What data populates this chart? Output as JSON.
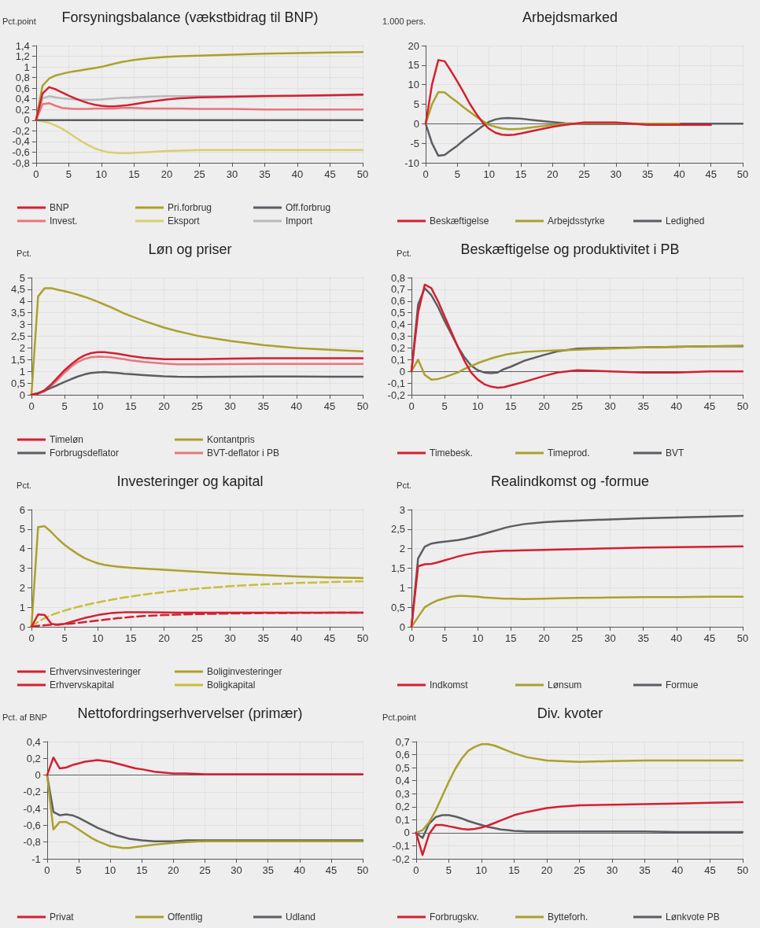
{
  "chart_data": [
    {
      "type": "line",
      "title": "Forsyningsbalance (vækstbidrag til BNP)",
      "ylabel": "Pct.point",
      "marker": "none",
      "grid": true,
      "legend": "bottom",
      "x": [
        0,
        1,
        2,
        3,
        4,
        5,
        6,
        7,
        8,
        9,
        10,
        11,
        12,
        13,
        14,
        15,
        17,
        20,
        22,
        25,
        30,
        35,
        40,
        45,
        50
      ],
      "xlim": [
        0,
        50
      ],
      "xticks": [
        0,
        5,
        10,
        15,
        20,
        25,
        30,
        35,
        40,
        45,
        50
      ],
      "ylim": [
        -0.8,
        1.4
      ],
      "yticks": [
        {
          "value": -0.8,
          "label": "-0,8"
        },
        {
          "value": -0.6,
          "label": "-0,6"
        },
        {
          "value": -0.4,
          "label": "-0,4"
        },
        {
          "value": -0.2,
          "label": "-0,2"
        },
        0,
        {
          "value": 0.2,
          "label": "0,2"
        },
        {
          "value": 0.4,
          "label": "0,4"
        },
        {
          "value": 0.6,
          "label": "0,6"
        },
        {
          "value": 0.8,
          "label": "0,8"
        },
        1,
        {
          "value": 1.2,
          "label": "1,2"
        },
        {
          "value": 1.4,
          "label": "1,4"
        }
      ],
      "series": [
        {
          "name": "BNP",
          "color": "#d42031",
          "values": [
            0,
            0.5,
            0.62,
            0.58,
            0.52,
            0.46,
            0.41,
            0.36,
            0.32,
            0.29,
            0.27,
            0.26,
            0.26,
            0.27,
            0.28,
            0.3,
            0.34,
            0.39,
            0.41,
            0.43,
            0.44,
            0.45,
            0.46,
            0.47,
            0.48
          ]
        },
        {
          "name": "Pri.forbrug",
          "color": "#aba12c",
          "values": [
            0,
            0.65,
            0.78,
            0.84,
            0.87,
            0.9,
            0.92,
            0.94,
            0.96,
            0.98,
            1.0,
            1.03,
            1.06,
            1.09,
            1.11,
            1.13,
            1.16,
            1.19,
            1.2,
            1.21,
            1.23,
            1.25,
            1.26,
            1.27,
            1.28
          ]
        },
        {
          "name": "Off.forbrug",
          "color": "#5c5d63",
          "values": [
            0,
            0,
            0,
            0,
            0,
            0,
            0,
            0,
            0,
            0,
            0,
            0,
            0,
            0,
            0,
            0,
            0,
            0,
            0,
            0,
            0,
            0,
            0,
            0,
            0
          ]
        },
        {
          "name": "Invest.",
          "color": "#e8767e",
          "values": [
            0,
            0.3,
            0.32,
            0.27,
            0.23,
            0.22,
            0.21,
            0.21,
            0.21,
            0.22,
            0.22,
            0.22,
            0.22,
            0.23,
            0.23,
            0.23,
            0.22,
            0.22,
            0.22,
            0.21,
            0.21,
            0.2,
            0.2,
            0.2,
            0.2
          ]
        },
        {
          "name": "Eksport",
          "color": "#d8cf6e",
          "values": [
            0,
            -0.02,
            -0.05,
            -0.1,
            -0.16,
            -0.24,
            -0.32,
            -0.4,
            -0.47,
            -0.53,
            -0.57,
            -0.6,
            -0.61,
            -0.62,
            -0.62,
            -0.61,
            -0.6,
            -0.58,
            -0.57,
            -0.56,
            -0.56,
            -0.56,
            -0.56,
            -0.56,
            -0.56
          ]
        },
        {
          "name": "Import",
          "color": "#b9b9bb",
          "values": [
            0,
            0.41,
            0.45,
            0.43,
            0.41,
            0.4,
            0.39,
            0.38,
            0.38,
            0.38,
            0.39,
            0.4,
            0.41,
            0.42,
            0.42,
            0.43,
            0.44,
            0.45,
            0.45,
            0.45,
            0.45,
            0.46,
            0.46,
            0.46,
            0.47
          ]
        }
      ]
    },
    {
      "type": "line",
      "title": "Arbejdsmarked",
      "ylabel": "1.000 pers.",
      "marker": "none",
      "grid": true,
      "legend": "bottom",
      "x": [
        0,
        1,
        2,
        3,
        4,
        5,
        6,
        7,
        8,
        9,
        10,
        11,
        12,
        13,
        14,
        15,
        17,
        20,
        22,
        25,
        30,
        35,
        40,
        45,
        50
      ],
      "xlim": [
        0,
        50
      ],
      "xticks": [
        0,
        5,
        10,
        15,
        20,
        25,
        30,
        35,
        40,
        45,
        50
      ],
      "ylim": [
        -10,
        20
      ],
      "yticks": [
        -10,
        -5,
        0,
        5,
        10,
        15,
        20
      ],
      "ref_lines": [
        {
          "axis": "y",
          "value": 0,
          "color": "#5c5d63"
        }
      ],
      "series": [
        {
          "name": "Beskæftigelse",
          "color": "#d42031",
          "values": [
            0,
            10,
            16.3,
            16,
            13.5,
            10.8,
            8,
            5,
            2.5,
            0.3,
            -1.3,
            -2.3,
            -2.8,
            -2.9,
            -2.8,
            -2.5,
            -1.8,
            -0.8,
            -0.3,
            0.3,
            0.3,
            -0.3,
            -0.3,
            -0.3,
            null
          ]
        },
        {
          "name": "Arbejdsstyrke",
          "color": "#aba12c",
          "values": [
            0,
            5,
            8.1,
            8,
            6.7,
            5.5,
            4.2,
            3,
            1.8,
            0.7,
            -0.3,
            -0.8,
            -1.2,
            -1.4,
            -1.4,
            -1.3,
            -0.9,
            -0.3,
            0,
            0.1,
            0.1,
            0,
            0,
            null,
            null
          ]
        },
        {
          "name": "Ledighed",
          "color": "#5c5d63",
          "values": [
            0,
            -5,
            -8.2,
            -8,
            -6.8,
            -5.6,
            -4.2,
            -3,
            -1.8,
            -0.6,
            0.5,
            1.1,
            1.4,
            1.5,
            1.4,
            1.3,
            0.9,
            0.4,
            0.1,
            -0.1,
            -0.1,
            0,
            0,
            0,
            0
          ]
        }
      ]
    },
    {
      "type": "line",
      "title": "Løn og priser",
      "ylabel": "Pct.",
      "marker": "none",
      "grid": true,
      "legend": "bottom",
      "x": [
        0,
        1,
        2,
        3,
        4,
        5,
        6,
        7,
        8,
        9,
        10,
        11,
        12,
        13,
        14,
        15,
        17,
        20,
        22,
        25,
        30,
        35,
        40,
        45,
        50
      ],
      "xlim": [
        0,
        50
      ],
      "xticks": [
        0,
        5,
        10,
        15,
        20,
        25,
        30,
        35,
        40,
        45,
        50
      ],
      "ylim": [
        0,
        5
      ],
      "yticks": [
        0,
        {
          "value": 0.5,
          "label": "0,5"
        },
        1,
        {
          "value": 1.5,
          "label": "1,5"
        },
        2,
        {
          "value": 2.5,
          "label": "2,5"
        },
        3,
        {
          "value": 3.5,
          "label": "3,5"
        },
        4,
        {
          "value": 4.5,
          "label": "4,5"
        },
        5
      ],
      "series": [
        {
          "name": "Timeløn",
          "color": "#d42031",
          "values": [
            0,
            0.05,
            0.2,
            0.45,
            0.75,
            1.05,
            1.3,
            1.52,
            1.68,
            1.78,
            1.82,
            1.82,
            1.79,
            1.75,
            1.7,
            1.65,
            1.58,
            1.52,
            1.52,
            1.52,
            1.54,
            1.56,
            1.56,
            1.56,
            1.56
          ]
        },
        {
          "name": "Kontantpris",
          "color": "#aba12c",
          "values": [
            0,
            4.2,
            4.55,
            4.55,
            4.48,
            4.42,
            4.35,
            4.27,
            4.18,
            4.08,
            3.97,
            3.85,
            3.74,
            3.6,
            3.47,
            3.36,
            3.15,
            2.87,
            2.72,
            2.52,
            2.3,
            2.12,
            2.0,
            1.92,
            1.85
          ]
        },
        {
          "name": "Forbrugsdeflator",
          "color": "#5c5d63",
          "values": [
            0,
            0.08,
            0.18,
            0.3,
            0.42,
            0.55,
            0.67,
            0.78,
            0.87,
            0.93,
            0.96,
            0.97,
            0.95,
            0.93,
            0.9,
            0.88,
            0.84,
            0.79,
            0.77,
            0.76,
            0.77,
            0.78,
            0.78,
            0.77,
            0.77
          ]
        },
        {
          "name": "BVT-deflator i PB",
          "color": "#e8767e",
          "values": [
            0,
            0.05,
            0.15,
            0.38,
            0.65,
            0.95,
            1.2,
            1.4,
            1.53,
            1.6,
            1.63,
            1.62,
            1.6,
            1.56,
            1.52,
            1.47,
            1.4,
            1.33,
            1.3,
            1.3,
            1.31,
            1.32,
            1.32,
            1.32,
            1.32
          ]
        }
      ]
    },
    {
      "type": "line",
      "title": "Beskæftigelse og produktivitet i PB",
      "ylabel": "Pct.",
      "marker": "none",
      "grid": true,
      "legend": "bottom",
      "x": [
        0,
        1,
        2,
        3,
        4,
        5,
        6,
        7,
        8,
        9,
        10,
        11,
        12,
        13,
        14,
        15,
        17,
        20,
        22,
        25,
        30,
        35,
        40,
        45,
        50
      ],
      "xlim": [
        0,
        50
      ],
      "xticks": [
        0,
        5,
        10,
        15,
        20,
        25,
        30,
        35,
        40,
        45,
        50
      ],
      "ylim": [
        -0.2,
        0.8
      ],
      "yticks": [
        {
          "value": -0.2,
          "label": "-0,2"
        },
        {
          "value": -0.1,
          "label": "-0,1"
        },
        0,
        {
          "value": 0.1,
          "label": "0,1"
        },
        {
          "value": 0.2,
          "label": "0,2"
        },
        {
          "value": 0.3,
          "label": "0,3"
        },
        {
          "value": 0.4,
          "label": "0,4"
        },
        {
          "value": 0.5,
          "label": "0,5"
        },
        {
          "value": 0.6,
          "label": "0,6"
        },
        {
          "value": 0.7,
          "label": "0,7"
        },
        {
          "value": 0.8,
          "label": "0,8"
        }
      ],
      "ref_lines": [
        {
          "axis": "y",
          "value": 0,
          "color": "#5c5d63"
        }
      ],
      "series": [
        {
          "name": "Timebesk.",
          "color": "#d42031",
          "values": [
            0,
            0.5,
            0.74,
            0.71,
            0.6,
            0.47,
            0.34,
            0.21,
            0.09,
            -0.01,
            -0.07,
            -0.11,
            -0.13,
            -0.14,
            -0.135,
            -0.12,
            -0.09,
            -0.04,
            -0.01,
            0.01,
            0,
            -0.01,
            -0.01,
            0,
            0
          ]
        },
        {
          "name": "Timeprod.",
          "color": "#aba12c",
          "values": [
            0,
            0.1,
            -0.03,
            -0.07,
            -0.065,
            -0.05,
            -0.03,
            -0.01,
            0.02,
            0.045,
            0.07,
            0.09,
            0.11,
            0.125,
            0.14,
            0.15,
            0.165,
            0.175,
            0.18,
            0.185,
            0.195,
            0.205,
            0.21,
            0.215,
            0.22
          ]
        },
        {
          "name": "BVT",
          "color": "#5c5d63",
          "values": [
            0,
            0.57,
            0.71,
            0.65,
            0.55,
            0.43,
            0.32,
            0.21,
            0.12,
            0.05,
            0.01,
            -0.01,
            -0.015,
            -0.01,
            0.02,
            0.04,
            0.09,
            0.14,
            0.17,
            0.195,
            0.2,
            0.205,
            0.21,
            0.215,
            0.215
          ]
        }
      ]
    },
    {
      "type": "line",
      "title": "Investeringer og kapital",
      "ylabel": "Pct.",
      "marker": "none",
      "grid": true,
      "legend": "bottom",
      "x": [
        0,
        1,
        2,
        3,
        4,
        5,
        6,
        7,
        8,
        9,
        10,
        11,
        12,
        13,
        14,
        15,
        17,
        20,
        22,
        25,
        30,
        35,
        40,
        45,
        50
      ],
      "xlim": [
        0,
        50
      ],
      "xticks": [
        0,
        5,
        10,
        15,
        20,
        25,
        30,
        35,
        40,
        45,
        50
      ],
      "ylim": [
        0,
        6
      ],
      "yticks": [
        0,
        1,
        2,
        3,
        4,
        5,
        6
      ],
      "series": [
        {
          "name": "Erhvervsinvesteringer",
          "color": "#d42031",
          "values": [
            0,
            0.63,
            0.6,
            0.15,
            0.1,
            0.15,
            0.25,
            0.35,
            0.45,
            0.52,
            0.6,
            0.65,
            0.7,
            0.72,
            0.74,
            0.75,
            0.75,
            0.73,
            0.72,
            0.72,
            0.72,
            0.72,
            0.72,
            0.72,
            0.72
          ]
        },
        {
          "name": "Boliginvesteringer",
          "color": "#aba12c",
          "values": [
            0,
            5.1,
            5.15,
            4.85,
            4.5,
            4.2,
            3.95,
            3.72,
            3.52,
            3.38,
            3.25,
            3.17,
            3.12,
            3.08,
            3.05,
            3.02,
            2.98,
            2.92,
            2.88,
            2.82,
            2.72,
            2.65,
            2.58,
            2.53,
            2.5
          ]
        },
        {
          "name": "Erhvervskapital",
          "color": "#d42031",
          "line_style": "dashed",
          "values": [
            0,
            0.05,
            0.08,
            0.1,
            0.12,
            0.14,
            0.16,
            0.2,
            0.24,
            0.28,
            0.32,
            0.36,
            0.4,
            0.44,
            0.47,
            0.5,
            0.55,
            0.6,
            0.62,
            0.65,
            0.68,
            0.7,
            0.71,
            0.72,
            0.72
          ]
        },
        {
          "name": "Boligkapital",
          "color": "#c9bd3a",
          "line_style": "dashed",
          "values": [
            0,
            0.25,
            0.45,
            0.6,
            0.72,
            0.83,
            0.93,
            1.02,
            1.1,
            1.18,
            1.25,
            1.32,
            1.38,
            1.44,
            1.5,
            1.55,
            1.65,
            1.78,
            1.85,
            1.95,
            2.08,
            2.17,
            2.24,
            2.29,
            2.33
          ]
        }
      ]
    },
    {
      "type": "line",
      "title": "Realindkomst og -formue",
      "ylabel": "Pct.",
      "marker": "none",
      "grid": true,
      "legend": "bottom",
      "x": [
        0,
        1,
        2,
        3,
        4,
        5,
        6,
        7,
        8,
        9,
        10,
        11,
        12,
        13,
        14,
        15,
        17,
        20,
        22,
        25,
        30,
        35,
        40,
        45,
        50
      ],
      "xlim": [
        0,
        50
      ],
      "xticks": [
        0,
        5,
        10,
        15,
        20,
        25,
        30,
        35,
        40,
        45,
        50
      ],
      "ylim": [
        0,
        3
      ],
      "yticks": [
        0,
        {
          "value": 0.5,
          "label": "0,5"
        },
        1,
        {
          "value": 1.5,
          "label": "1,5"
        },
        2,
        {
          "value": 2.5,
          "label": "2,5"
        },
        3
      ],
      "series": [
        {
          "name": "Indkomst",
          "color": "#d42031",
          "values": [
            0,
            1.55,
            1.6,
            1.61,
            1.65,
            1.7,
            1.75,
            1.8,
            1.84,
            1.87,
            1.9,
            1.92,
            1.93,
            1.94,
            1.95,
            1.95,
            1.96,
            1.97,
            1.98,
            1.99,
            2.01,
            2.03,
            2.04,
            2.05,
            2.06
          ]
        },
        {
          "name": "Lønsum",
          "color": "#aba12c",
          "values": [
            0,
            0.25,
            0.5,
            0.6,
            0.68,
            0.73,
            0.77,
            0.79,
            0.79,
            0.78,
            0.77,
            0.75,
            0.74,
            0.73,
            0.72,
            0.72,
            0.71,
            0.72,
            0.73,
            0.74,
            0.75,
            0.76,
            0.76,
            0.77,
            0.77
          ]
        },
        {
          "name": "Formue",
          "color": "#5c5d63",
          "values": [
            0,
            1.75,
            2.05,
            2.13,
            2.16,
            2.18,
            2.2,
            2.22,
            2.25,
            2.29,
            2.33,
            2.38,
            2.43,
            2.48,
            2.53,
            2.57,
            2.63,
            2.68,
            2.7,
            2.72,
            2.75,
            2.78,
            2.8,
            2.82,
            2.84
          ]
        }
      ]
    },
    {
      "type": "line",
      "title": "Nettofordringserhvervelser (primær)",
      "ylabel": "Pct. af BNP",
      "marker": "none",
      "grid": true,
      "legend": "bottom",
      "x": [
        0,
        1,
        2,
        3,
        4,
        5,
        6,
        7,
        8,
        9,
        10,
        11,
        12,
        13,
        14,
        15,
        17,
        20,
        22,
        25,
        30,
        35,
        40,
        45,
        50
      ],
      "xlim": [
        0,
        50
      ],
      "xticks": [
        0,
        5,
        10,
        15,
        20,
        25,
        30,
        35,
        40,
        45,
        50
      ],
      "ylim": [
        -1,
        0.4
      ],
      "yticks": [
        -1,
        {
          "value": -0.8,
          "label": "-0,8"
        },
        {
          "value": -0.6,
          "label": "-0,6"
        },
        {
          "value": -0.4,
          "label": "-0,4"
        },
        {
          "value": -0.2,
          "label": "-0,2"
        },
        0,
        {
          "value": 0.2,
          "label": "0,2"
        },
        {
          "value": 0.4,
          "label": "0,4"
        }
      ],
      "ref_lines": [
        {
          "axis": "y",
          "value": 0,
          "color": "#5c5d63"
        }
      ],
      "series": [
        {
          "name": "Privat",
          "color": "#d42031",
          "values": [
            0,
            0.21,
            0.08,
            0.09,
            0.12,
            0.14,
            0.16,
            0.17,
            0.18,
            0.17,
            0.16,
            0.14,
            0.12,
            0.1,
            0.08,
            0.07,
            0.04,
            0.02,
            0.02,
            0.01,
            0.01,
            0.01,
            0.01,
            0.01,
            0.01
          ]
        },
        {
          "name": "Offentlig",
          "color": "#aba12c",
          "values": [
            0,
            -0.65,
            -0.56,
            -0.56,
            -0.6,
            -0.65,
            -0.7,
            -0.75,
            -0.79,
            -0.82,
            -0.85,
            -0.86,
            -0.87,
            -0.87,
            -0.86,
            -0.85,
            -0.83,
            -0.81,
            -0.8,
            -0.79,
            -0.79,
            -0.79,
            -0.79,
            -0.79,
            -0.79
          ]
        },
        {
          "name": "Udland",
          "color": "#5c5d63",
          "values": [
            0,
            -0.44,
            -0.48,
            -0.47,
            -0.48,
            -0.51,
            -0.55,
            -0.59,
            -0.63,
            -0.66,
            -0.69,
            -0.72,
            -0.74,
            -0.76,
            -0.77,
            -0.78,
            -0.79,
            -0.79,
            -0.78,
            -0.78,
            -0.78,
            -0.78,
            -0.78,
            -0.78,
            -0.78
          ]
        }
      ]
    },
    {
      "type": "line",
      "title": "Div. kvoter",
      "ylabel": "Pct.point",
      "marker": "none",
      "grid": true,
      "legend": "bottom",
      "x": [
        0,
        1,
        2,
        3,
        4,
        5,
        6,
        7,
        8,
        9,
        10,
        11,
        12,
        13,
        14,
        15,
        17,
        20,
        22,
        25,
        30,
        35,
        40,
        45,
        50
      ],
      "xlim": [
        0,
        50
      ],
      "xticks": [
        0,
        5,
        10,
        15,
        20,
        25,
        30,
        35,
        40,
        45,
        50
      ],
      "ylim": [
        -0.2,
        0.7
      ],
      "yticks": [
        {
          "value": -0.2,
          "label": "-0,2"
        },
        {
          "value": -0.1,
          "label": "-0,1"
        },
        0,
        {
          "value": 0.1,
          "label": "0,1"
        },
        {
          "value": 0.2,
          "label": "0,2"
        },
        {
          "value": 0.3,
          "label": "0,3"
        },
        {
          "value": 0.4,
          "label": "0,4"
        },
        {
          "value": 0.5,
          "label": "0,5"
        },
        {
          "value": 0.6,
          "label": "0,6"
        },
        {
          "value": 0.7,
          "label": "0,7"
        }
      ],
      "ref_lines": [
        {
          "axis": "y",
          "value": 0,
          "color": "#5c5d63"
        }
      ],
      "series": [
        {
          "name": "Forbrugskv.",
          "color": "#d42031",
          "values": [
            0,
            -0.17,
            -0.01,
            0.06,
            0.06,
            0.05,
            0.04,
            0.03,
            0.025,
            0.03,
            0.04,
            0.055,
            0.075,
            0.095,
            0.115,
            0.135,
            0.16,
            0.19,
            0.2,
            0.21,
            0.215,
            0.22,
            0.225,
            0.23,
            0.235
          ]
        },
        {
          "name": "Bytteforh.",
          "color": "#aba12c",
          "values": [
            0,
            0.02,
            0.08,
            0.17,
            0.28,
            0.39,
            0.49,
            0.57,
            0.63,
            0.66,
            0.68,
            0.68,
            0.67,
            0.65,
            0.63,
            0.61,
            0.58,
            0.555,
            0.55,
            0.545,
            0.55,
            0.555,
            0.555,
            0.555,
            0.555
          ]
        },
        {
          "name": "Lønkvote PB",
          "color": "#5c5d63",
          "values": [
            0,
            -0.04,
            0.07,
            0.12,
            0.135,
            0.135,
            0.125,
            0.11,
            0.09,
            0.075,
            0.06,
            0.045,
            0.035,
            0.025,
            0.02,
            0.015,
            0.01,
            0.01,
            0.01,
            0.01,
            0.01,
            0.01,
            0.005,
            0.005,
            0.005
          ]
        }
      ]
    }
  ]
}
